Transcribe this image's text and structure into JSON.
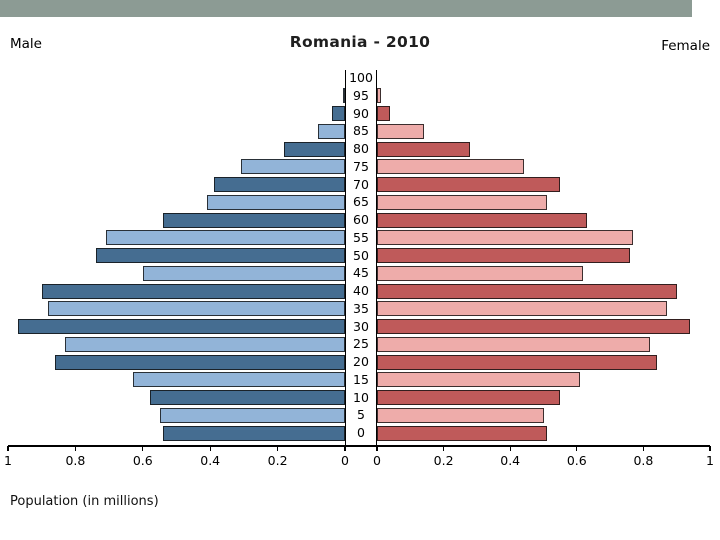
{
  "header": {
    "male_label": "Male",
    "title": "Romania - 2010",
    "female_label": "Female"
  },
  "footer": {
    "xlabel": "Population (in millions)"
  },
  "chart_data": {
    "type": "bar",
    "subtype": "population-pyramid",
    "title": "Romania - 2010",
    "xlabel": "Population (in millions)",
    "left_series": "Male",
    "right_series": "Female",
    "xlim_each_side": [
      0,
      1
    ],
    "grid": false,
    "x_ticks_left": [
      "1",
      "0.8",
      "0.6",
      "0.4",
      "0.2",
      "0"
    ],
    "x_ticks_right": [
      "0",
      "0.2",
      "0.4",
      "0.6",
      "0.8",
      "1"
    ],
    "age_axis_labels": [
      "100",
      "95",
      "90",
      "85",
      "80",
      "75",
      "70",
      "65",
      "60",
      "55",
      "50",
      "45",
      "40",
      "35",
      "30",
      "25",
      "20",
      "15",
      "10",
      "5",
      "0"
    ],
    "age_groups": [
      {
        "age": "95-99",
        "age_start": 95,
        "male": 0.005,
        "female": 0.012,
        "shade": "light"
      },
      {
        "age": "90-94",
        "age_start": 90,
        "male": 0.04,
        "female": 0.04,
        "shade": "dark"
      },
      {
        "age": "85-89",
        "age_start": 85,
        "male": 0.08,
        "female": 0.14,
        "shade": "light"
      },
      {
        "age": "80-84",
        "age_start": 80,
        "male": 0.18,
        "female": 0.28,
        "shade": "dark"
      },
      {
        "age": "75-79",
        "age_start": 75,
        "male": 0.31,
        "female": 0.44,
        "shade": "light"
      },
      {
        "age": "70-74",
        "age_start": 70,
        "male": 0.39,
        "female": 0.55,
        "shade": "dark"
      },
      {
        "age": "65-69",
        "age_start": 65,
        "male": 0.41,
        "female": 0.51,
        "shade": "light"
      },
      {
        "age": "60-64",
        "age_start": 60,
        "male": 0.54,
        "female": 0.63,
        "shade": "dark"
      },
      {
        "age": "55-59",
        "age_start": 55,
        "male": 0.71,
        "female": 0.77,
        "shade": "light"
      },
      {
        "age": "50-54",
        "age_start": 50,
        "male": 0.74,
        "female": 0.76,
        "shade": "dark"
      },
      {
        "age": "45-49",
        "age_start": 45,
        "male": 0.6,
        "female": 0.62,
        "shade": "light"
      },
      {
        "age": "40-44",
        "age_start": 40,
        "male": 0.9,
        "female": 0.9,
        "shade": "dark"
      },
      {
        "age": "35-39",
        "age_start": 35,
        "male": 0.88,
        "female": 0.87,
        "shade": "light"
      },
      {
        "age": "30-34",
        "age_start": 30,
        "male": 0.97,
        "female": 0.94,
        "shade": "dark"
      },
      {
        "age": "25-29",
        "age_start": 25,
        "male": 0.83,
        "female": 0.82,
        "shade": "light"
      },
      {
        "age": "20-24",
        "age_start": 20,
        "male": 0.86,
        "female": 0.84,
        "shade": "dark"
      },
      {
        "age": "15-19",
        "age_start": 15,
        "male": 0.63,
        "female": 0.61,
        "shade": "light"
      },
      {
        "age": "10-14",
        "age_start": 10,
        "male": 0.58,
        "female": 0.55,
        "shade": "dark"
      },
      {
        "age": "5-9",
        "age_start": 5,
        "male": 0.55,
        "female": 0.5,
        "shade": "light"
      },
      {
        "age": "0-4",
        "age_start": 0,
        "male": 0.54,
        "female": 0.51,
        "shade": "dark"
      }
    ],
    "colors": {
      "male_dark": "#456d91",
      "male_light": "#92b4d8",
      "female_dark": "#bf5a5a",
      "female_light": "#eeacaa",
      "top_bar": "#8c9b94"
    }
  }
}
